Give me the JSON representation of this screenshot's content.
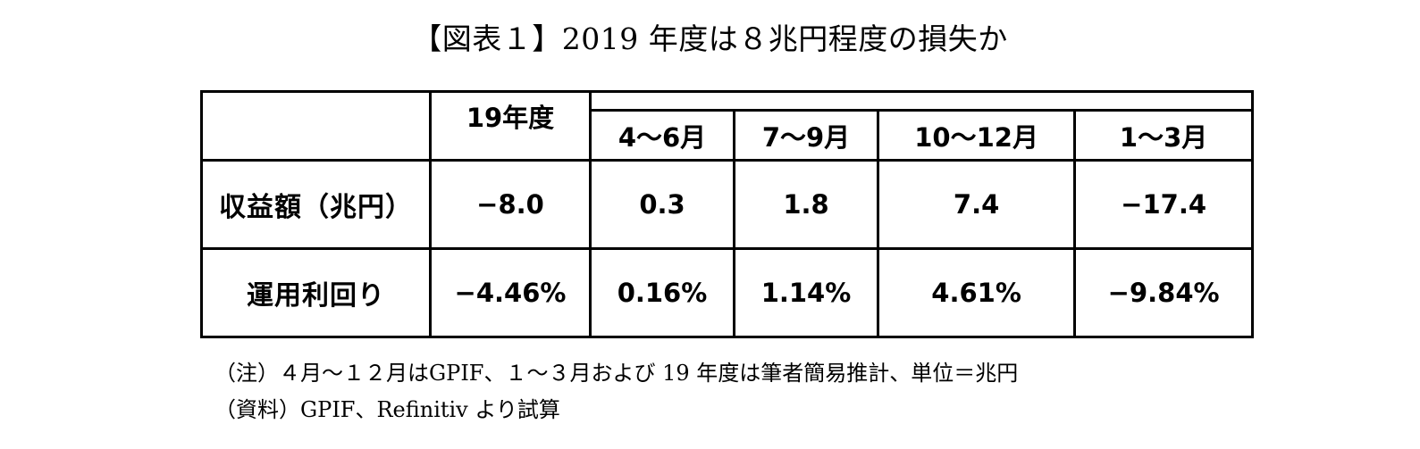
{
  "title": "【図表１】2019 年度は８兆円程度の損失か",
  "table": {
    "corner": "",
    "fy_header": "19年度",
    "quarter_headers": [
      "4～6月",
      "7～9月",
      "10～12月",
      "1～3月"
    ],
    "rows": [
      {
        "label": "収益額（兆円）",
        "fy": "−8.0",
        "quarters": [
          "0.3",
          "1.8",
          "7.4",
          "−17.4"
        ]
      },
      {
        "label": "運用利回り",
        "fy": "−4.46%",
        "quarters": [
          "0.16%",
          "1.14%",
          "4.61%",
          "−9.84%"
        ]
      }
    ]
  },
  "notes": {
    "note": "（注）４月～１２月はGPIF、１～３月および 19 年度は筆者簡易推計、単位＝兆円",
    "source": "（資料）GPIF、Refinitiv より試算"
  }
}
